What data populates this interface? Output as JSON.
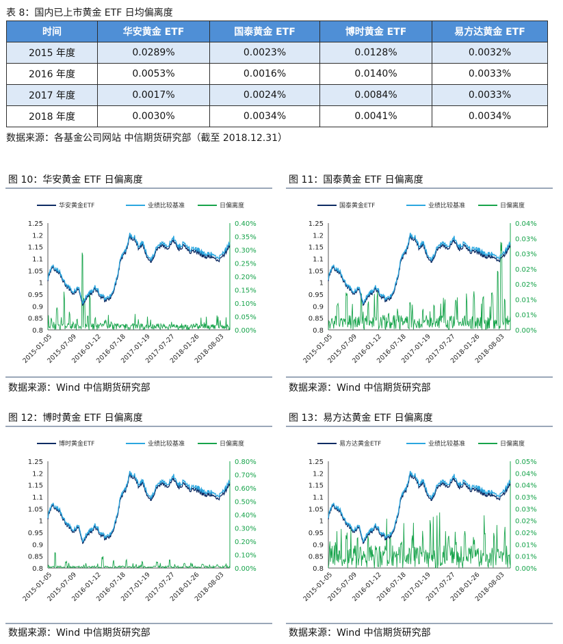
{
  "table": {
    "caption": "表 8：国内已上市黄金 ETF 日均偏离度",
    "headers": [
      "时间",
      "华安黄金 ETF",
      "国泰黄金 ETF",
      "博时黄金 ETF",
      "易方达黄金 ETF"
    ],
    "rows": [
      [
        "2015 年度",
        "0.0289%",
        "0.0023%",
        "0.0128%",
        "0.0032%"
      ],
      [
        "2016 年度",
        "0.0053%",
        "0.0016%",
        "0.0140%",
        "0.0033%"
      ],
      [
        "2017 年度",
        "0.0017%",
        "0.0024%",
        "0.0084%",
        "0.0033%"
      ],
      [
        "2018 年度",
        "0.0030%",
        "0.0034%",
        "0.0041%",
        "0.0034%"
      ]
    ],
    "source": "数据来源：各基金公司网站 中信期货研究部（截至 2018.12.31）"
  },
  "colors": {
    "etf": "#0d2b63",
    "bench": "#2aa6df",
    "dev": "#16a34a",
    "header": "#4f8fd6"
  },
  "chart_data": [
    {
      "type": "line",
      "title": "图 10：华安黄金 ETF 日偏离度",
      "source": "数据来源：Wind 中信期货研究部",
      "legend": [
        "华安黄金ETF",
        "业绩比较基准",
        "日偏离度"
      ],
      "x_ticks": [
        "2015-01-05",
        "2015-07-09",
        "2016-01-12",
        "2016-07-18",
        "2017-01-19",
        "2017-07-27",
        "2018-01-26",
        "2018-08-03"
      ],
      "left_ticks": [
        "0.8",
        "0.85",
        "0.9",
        "0.95",
        "1",
        "1.05",
        "1.1",
        "1.15",
        "1.2",
        "1.25"
      ],
      "right_ticks": [
        "0.00%",
        "0.05%",
        "0.10%",
        "0.15%",
        "0.20%",
        "0.25%",
        "0.30%",
        "0.35%",
        "0.40%"
      ],
      "ylim_left": [
        0.8,
        1.25
      ],
      "ylim_right": [
        0,
        0.4
      ],
      "deviation_spikes": [
        [
          0.02,
          0.05
        ],
        [
          0.05,
          0.09
        ],
        [
          0.09,
          0.15
        ],
        [
          0.12,
          0.07
        ],
        [
          0.14,
          0.03
        ],
        [
          0.16,
          0.04
        ],
        [
          0.19,
          0.36
        ],
        [
          0.2,
          0.12
        ],
        [
          0.23,
          0.14
        ],
        [
          0.26,
          0.05
        ],
        [
          0.29,
          0.03
        ],
        [
          0.32,
          0.04
        ],
        [
          0.35,
          0.03
        ],
        [
          0.38,
          0.02
        ],
        [
          0.41,
          0.02
        ],
        [
          0.5,
          0.015
        ],
        [
          0.7,
          0.012
        ],
        [
          0.9,
          0.015
        ]
      ],
      "deviation_base": 0.015
    },
    {
      "type": "line",
      "title": "图 11：国泰黄金 ETF 日偏离度",
      "source": "数据来源：Wind 中信期货研究部",
      "legend": [
        "国泰黄金ETF",
        "业绩比较基准",
        "日偏离度"
      ],
      "x_ticks": [
        "2015-01-05",
        "2015-07-09",
        "2016-01-12",
        "2016-07-18",
        "2017-01-19",
        "2017-07-27",
        "2018-01-26",
        "2018-08-03"
      ],
      "left_ticks": [
        "0.8",
        "0.85",
        "0.9",
        "0.95",
        "1",
        "1.05",
        "1.1",
        "1.15",
        "1.2",
        "1.25"
      ],
      "right_ticks": [
        "0.00%",
        "0.01%",
        "0.01%",
        "0.02%",
        "0.02%",
        "0.03%",
        "0.03%",
        "0.04%"
      ],
      "ylim_left": [
        0.8,
        1.25
      ],
      "ylim_right": [
        0,
        0.035
      ],
      "deviation_spikes": [
        [
          0.05,
          0.01
        ],
        [
          0.1,
          0.014
        ],
        [
          0.13,
          0.006
        ],
        [
          0.18,
          0.012
        ],
        [
          0.22,
          0.011
        ],
        [
          0.27,
          0.014
        ],
        [
          0.33,
          0.006
        ],
        [
          0.38,
          0.007
        ],
        [
          0.45,
          0.009
        ],
        [
          0.52,
          0.008
        ],
        [
          0.58,
          0.01
        ],
        [
          0.64,
          0.009
        ],
        [
          0.7,
          0.01
        ],
        [
          0.76,
          0.012
        ],
        [
          0.8,
          0.013
        ],
        [
          0.85,
          0.011
        ],
        [
          0.9,
          0.014
        ],
        [
          0.93,
          0.025
        ],
        [
          0.95,
          0.032
        ],
        [
          0.97,
          0.012
        ]
      ],
      "deviation_base": 0.003
    },
    {
      "type": "line",
      "title": "图 12：博时黄金 ETF 日偏离度",
      "source": "数据来源：Wind 中信期货研究部",
      "legend": [
        "博时黄金ETF",
        "业绩比较基准",
        "日偏离度"
      ],
      "x_ticks": [
        "2015-01-05",
        "2015-07-09",
        "2016-01-12",
        "2016-07-18",
        "2017-01-19",
        "2017-07-27",
        "2018-01-26",
        "2018-08-03"
      ],
      "left_ticks": [
        "0.8",
        "0.85",
        "0.9",
        "0.95",
        "1",
        "1.05",
        "1.1",
        "1.15",
        "1.2",
        "1.25"
      ],
      "right_ticks": [
        "0.00%",
        "0.10%",
        "0.20%",
        "0.30%",
        "0.40%",
        "0.50%",
        "0.60%",
        "0.70%",
        "0.80%"
      ],
      "ylim_left": [
        0.8,
        1.25
      ],
      "ylim_right": [
        0,
        0.8
      ],
      "deviation_spikes": [
        [
          0.04,
          0.14
        ],
        [
          0.1,
          0.05
        ],
        [
          0.3,
          0.09
        ],
        [
          0.36,
          0.06
        ],
        [
          0.43,
          0.07
        ],
        [
          0.52,
          0.05
        ],
        [
          0.6,
          0.05
        ],
        [
          0.67,
          0.07
        ],
        [
          0.75,
          0.04
        ],
        [
          0.85,
          0.03
        ],
        [
          0.93,
          0.03
        ]
      ],
      "deviation_base": 0.01
    },
    {
      "type": "line",
      "title": "图 13：易方达黄金 ETF 日偏离度",
      "source": "数据来源：Wind 中信期货研究部",
      "legend": [
        "易方达黄金ETF",
        "业绩比较基准",
        "日偏离度"
      ],
      "x_ticks": [
        "2015-01-05",
        "2015-07-09",
        "2016-01-12",
        "2016-07-18",
        "2017-01-19",
        "2017-07-27",
        "2018-01-26",
        "2018-08-03"
      ],
      "left_ticks": [
        "0.8",
        "0.85",
        "0.9",
        "0.95",
        "1",
        "1.05",
        "1.1",
        "1.15",
        "1.2",
        "1.25"
      ],
      "right_ticks": [
        "0.00%",
        "0.01%",
        "0.01%",
        "0.02%",
        "0.02%",
        "0.03%",
        "0.03%",
        "0.04%",
        "0.04%",
        "0.05%"
      ],
      "ylim_left": [
        0.8,
        1.25
      ],
      "ylim_right": [
        0,
        0.045
      ],
      "deviation_spikes": [
        [
          0.04,
          0.012
        ],
        [
          0.1,
          0.015
        ],
        [
          0.16,
          0.013
        ],
        [
          0.22,
          0.014
        ],
        [
          0.28,
          0.011
        ],
        [
          0.34,
          0.018
        ],
        [
          0.4,
          0.012
        ],
        [
          0.46,
          0.015
        ],
        [
          0.52,
          0.014
        ],
        [
          0.56,
          0.022
        ],
        [
          0.61,
          0.01
        ],
        [
          0.66,
          0.015
        ],
        [
          0.7,
          0.013
        ],
        [
          0.75,
          0.016
        ],
        [
          0.8,
          0.012
        ],
        [
          0.86,
          0.019
        ],
        [
          0.91,
          0.015
        ],
        [
          0.97,
          0.019
        ]
      ],
      "deviation_base": 0.006
    }
  ]
}
